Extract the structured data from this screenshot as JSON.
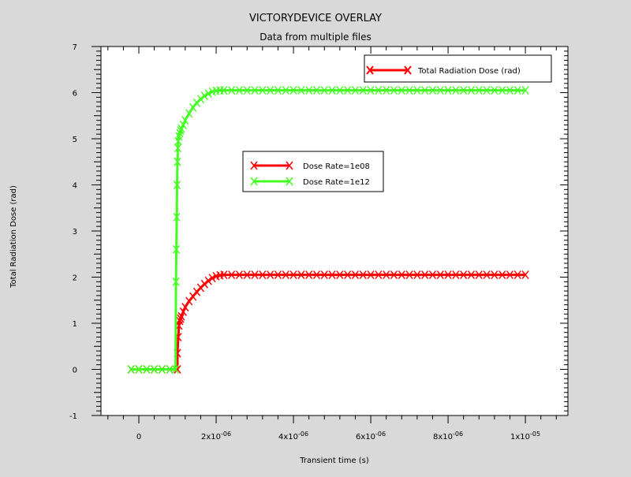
{
  "chart_data": {
    "type": "line",
    "title": "VICTORYDEVICE OVERLAY",
    "subtitle": "Data from multiple files",
    "xlabel": "Transient time (s)",
    "ylabel": "Total Radiation Dose (rad)",
    "xlim": [
      -9.8e-07,
      1.11e-05
    ],
    "ylim": [
      -1,
      7
    ],
    "x_ticks": [
      {
        "value": 0,
        "label": "0",
        "base": "0",
        "exp": ""
      },
      {
        "value": 2e-06,
        "label": "2x10-06",
        "base": "2x10",
        "exp": "-06"
      },
      {
        "value": 4e-06,
        "label": "4x10-06",
        "base": "4x10",
        "exp": "-06"
      },
      {
        "value": 6e-06,
        "label": "6x10-06",
        "base": "6x10",
        "exp": "-06"
      },
      {
        "value": 8e-06,
        "label": "8x10-06",
        "base": "8x10",
        "exp": "-06"
      },
      {
        "value": 1e-05,
        "label": "1x10-05",
        "base": "1x10",
        "exp": "-05"
      }
    ],
    "y_ticks": [
      {
        "value": -1,
        "label": "-1"
      },
      {
        "value": 0,
        "label": "0"
      },
      {
        "value": 1,
        "label": "1"
      },
      {
        "value": 2,
        "label": "2"
      },
      {
        "value": 3,
        "label": "3"
      },
      {
        "value": 4,
        "label": "4"
      },
      {
        "value": 5,
        "label": "5"
      },
      {
        "value": 6,
        "label": "6"
      },
      {
        "value": 7,
        "label": "7"
      }
    ],
    "legend_outer": {
      "placement": "top-right",
      "entries": [
        {
          "label": "Total Radiation Dose (rad)",
          "color": "#ff0000"
        }
      ]
    },
    "legend_inner": {
      "placement": "center",
      "entries": [
        {
          "label": "Dose Rate=1e08",
          "color": "#ff0000"
        },
        {
          "label": "Dose Rate=1e12",
          "color": "#44ff22"
        }
      ]
    },
    "series": [
      {
        "name": "Dose Rate=1e08",
        "color": "#ff0000",
        "x": [
          -2e-07,
          0,
          2e-07,
          4e-07,
          6e-07,
          8e-07,
          1e-06,
          1e-06,
          1.02e-06,
          1.04e-06,
          1.06e-06,
          1.08e-06,
          1.1e-06,
          1.15e-06,
          1.2e-06,
          1.3e-06,
          1.4e-06,
          1.5e-06,
          1.6e-06,
          1.7e-06,
          1.8e-06,
          1.9e-06,
          2e-06,
          2.1e-06,
          2.2e-06,
          2.4e-06,
          2.6e-06,
          2.8e-06,
          3e-06,
          3.2e-06,
          3.4e-06,
          3.6e-06,
          3.8e-06,
          4e-06,
          4.2e-06,
          4.4e-06,
          4.6e-06,
          4.8e-06,
          5e-06,
          5.2e-06,
          5.4e-06,
          5.6e-06,
          5.8e-06,
          6e-06,
          6.2e-06,
          6.4e-06,
          6.6e-06,
          6.8e-06,
          7e-06,
          7.2e-06,
          7.4e-06,
          7.6e-06,
          7.8e-06,
          8e-06,
          8.2e-06,
          8.4e-06,
          8.6e-06,
          8.8e-06,
          9e-06,
          9.2e-06,
          9.4e-06,
          9.6e-06,
          9.8e-06,
          1e-05
        ],
        "y": [
          0,
          0,
          0,
          0,
          0,
          0,
          0,
          0.35,
          0.7,
          0.95,
          1.05,
          1.1,
          1.15,
          1.25,
          1.35,
          1.48,
          1.58,
          1.68,
          1.77,
          1.85,
          1.92,
          1.98,
          2.02,
          2.04,
          2.05,
          2.05,
          2.05,
          2.05,
          2.05,
          2.05,
          2.05,
          2.05,
          2.05,
          2.05,
          2.05,
          2.05,
          2.05,
          2.05,
          2.05,
          2.05,
          2.05,
          2.05,
          2.05,
          2.05,
          2.05,
          2.05,
          2.05,
          2.05,
          2.05,
          2.05,
          2.05,
          2.05,
          2.05,
          2.05,
          2.05,
          2.05,
          2.05,
          2.05,
          2.05,
          2.05,
          2.05,
          2.05,
          2.05,
          2.05
        ]
      },
      {
        "name": "Dose Rate=1e12",
        "color": "#44ff22",
        "x": [
          -2e-07,
          0,
          2e-07,
          4e-07,
          6e-07,
          8e-07,
          9.5e-07,
          9.6e-07,
          9.7e-07,
          9.8e-07,
          9.9e-07,
          1e-06,
          1.01e-06,
          1.02e-06,
          1.04e-06,
          1.06e-06,
          1.08e-06,
          1.1e-06,
          1.15e-06,
          1.2e-06,
          1.3e-06,
          1.4e-06,
          1.5e-06,
          1.6e-06,
          1.7e-06,
          1.8e-06,
          1.9e-06,
          2e-06,
          2.1e-06,
          2.2e-06,
          2.4e-06,
          2.6e-06,
          2.8e-06,
          3e-06,
          3.2e-06,
          3.4e-06,
          3.6e-06,
          3.8e-06,
          4e-06,
          4.2e-06,
          4.4e-06,
          4.6e-06,
          4.8e-06,
          5e-06,
          5.2e-06,
          5.4e-06,
          5.6e-06,
          5.8e-06,
          6e-06,
          6.2e-06,
          6.4e-06,
          6.6e-06,
          6.8e-06,
          7e-06,
          7.2e-06,
          7.4e-06,
          7.6e-06,
          7.8e-06,
          8e-06,
          8.2e-06,
          8.4e-06,
          8.6e-06,
          8.8e-06,
          9e-06,
          9.2e-06,
          9.4e-06,
          9.6e-06,
          9.8e-06,
          1e-05
        ],
        "y": [
          0,
          0,
          0,
          0,
          0,
          0,
          0,
          1.9,
          2.6,
          3.3,
          4.0,
          4.5,
          4.8,
          4.95,
          5.05,
          5.12,
          5.18,
          5.22,
          5.3,
          5.4,
          5.55,
          5.68,
          5.78,
          5.86,
          5.93,
          5.98,
          6.02,
          6.04,
          6.05,
          6.05,
          6.05,
          6.05,
          6.05,
          6.05,
          6.05,
          6.05,
          6.05,
          6.05,
          6.05,
          6.05,
          6.05,
          6.05,
          6.05,
          6.05,
          6.05,
          6.05,
          6.05,
          6.05,
          6.05,
          6.05,
          6.05,
          6.05,
          6.05,
          6.05,
          6.05,
          6.05,
          6.05,
          6.05,
          6.05,
          6.05,
          6.05,
          6.05,
          6.05,
          6.05,
          6.05,
          6.05,
          6.05,
          6.05,
          6.05
        ]
      }
    ],
    "grid": false
  }
}
